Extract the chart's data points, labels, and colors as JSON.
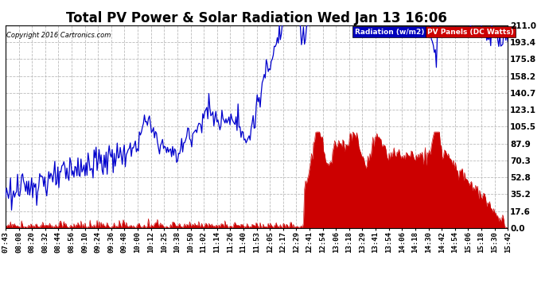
{
  "title": "Total PV Power & Solar Radiation Wed Jan 13 16:06",
  "copyright": "Copyright 2016 Cartronics.com",
  "yticks": [
    0.0,
    17.6,
    35.2,
    52.8,
    70.3,
    87.9,
    105.5,
    123.1,
    140.7,
    158.2,
    175.8,
    193.4,
    211.0
  ],
  "ymax": 211.0,
  "ymin": 0.0,
  "legend_radiation_label": "Radiation (w/m2)",
  "legend_pv_label": "PV Panels (DC Watts)",
  "legend_radiation_bg": "#0000bb",
  "legend_pv_bg": "#cc0000",
  "bg_color": "#ffffff",
  "grid_color": "#bbbbbb",
  "line_color_radiation": "#0000cc",
  "fill_color_pv": "#cc0000",
  "title_fontsize": 12,
  "tick_fontsize": 6.5,
  "num_points": 500
}
